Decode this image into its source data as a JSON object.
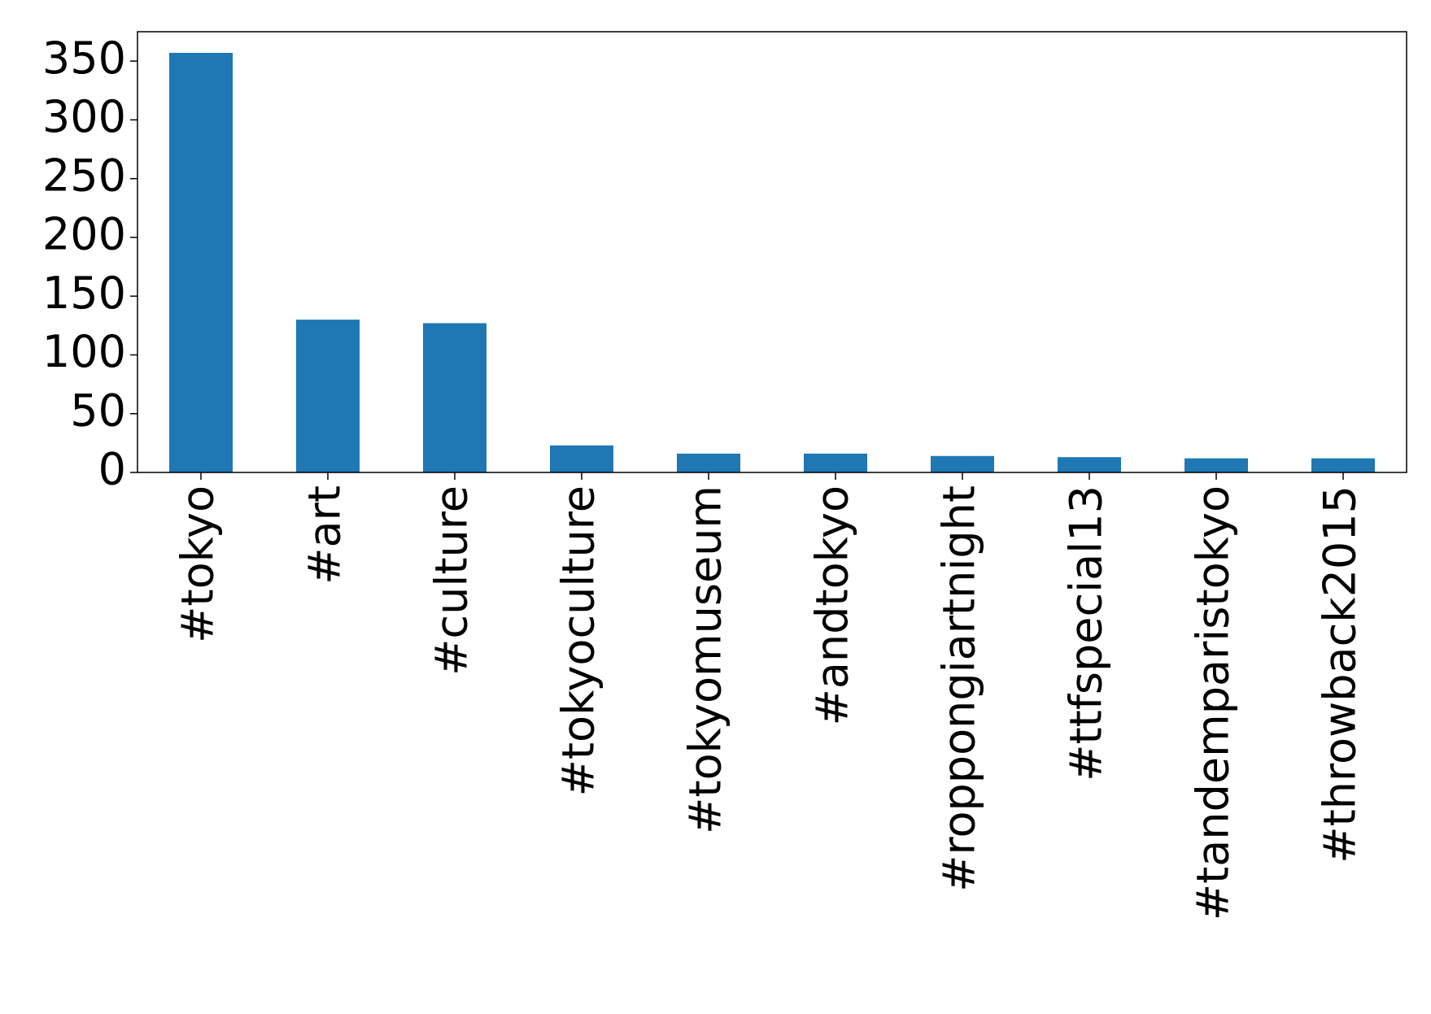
{
  "chart_data": {
    "type": "bar",
    "categories": [
      "#tokyo",
      "#art",
      "#culture",
      "#tokyoculture",
      "#tokyomuseum",
      "#andtokyo",
      "#roppongiartnight",
      "#ttfspecial13",
      "#tandemparistokyo",
      "#throwback2015"
    ],
    "values": [
      357,
      130,
      127,
      23,
      16,
      16,
      14,
      13,
      12,
      12
    ],
    "color": "#1f77b4",
    "ylim": [
      0,
      375
    ],
    "yticks": [
      0,
      50,
      100,
      150,
      200,
      250,
      300,
      350
    ],
    "grid": false
  }
}
